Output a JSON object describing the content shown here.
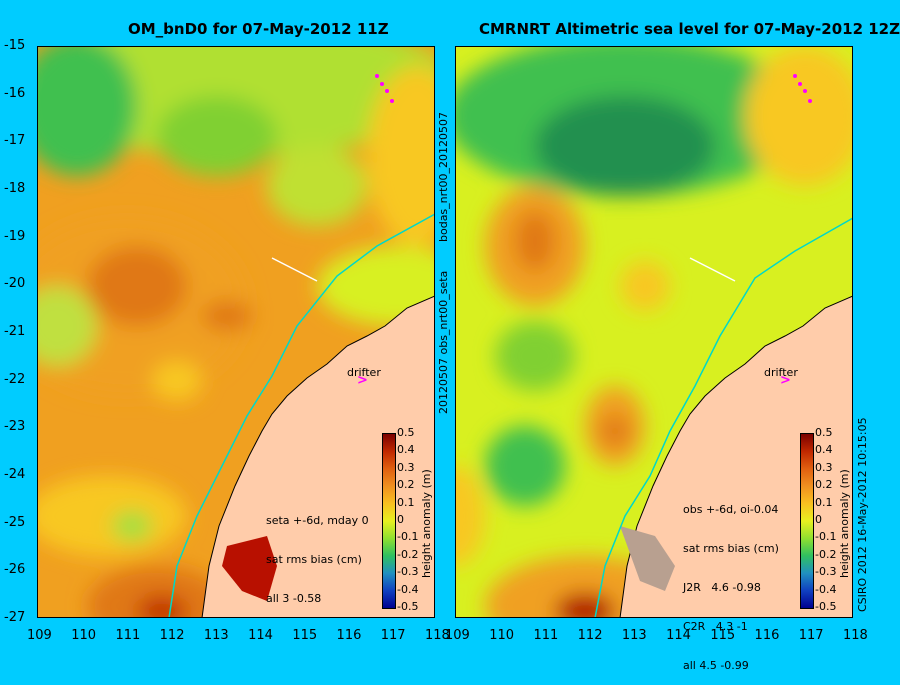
{
  "left_panel": {
    "title": "OM_bnD0 for 07-May-2012 11Z",
    "note_lines": [
      "seta +-6d, mday 0",
      "sat rms bias (cm)",
      "all 3 -0.58"
    ]
  },
  "right_panel": {
    "title": "CMRNRT Altimetric sea level  for 07-May-2012 12Z",
    "note_lines": [
      "obs +-6d, oi-0.04",
      "sat rms bias (cm)",
      "J2R   4.6 -0.98",
      "C2R   4.3 -1",
      "all 4.5 -0.99"
    ]
  },
  "y_ticks": [
    "-15",
    "-16",
    "-17",
    "-18",
    "-19",
    "-20",
    "-21",
    "-22",
    "-23",
    "-24",
    "-25",
    "-26",
    "-27"
  ],
  "x_ticks": [
    "109",
    "110",
    "111",
    "112",
    "113",
    "114",
    "115",
    "116",
    "117",
    "118"
  ],
  "x_ticks_right": [
    "109",
    "110",
    "111",
    "112",
    "113",
    "114",
    "115",
    "116",
    "117",
    "118"
  ],
  "colorbar": {
    "labels": [
      "0.5",
      "0.4",
      "0.3",
      "0.2",
      "0.1",
      "0",
      "-0.1",
      "-0.2",
      "-0.3",
      "-0.4",
      "-0.5"
    ],
    "title": "height anomaly (m)",
    "colors": [
      "#7a0000",
      "#c02800",
      "#e06010",
      "#f09020",
      "#f8c020",
      "#e8f020",
      "#90e030",
      "#30c060",
      "#2090c0",
      "#1040c0",
      "#000090"
    ]
  },
  "side_texts": {
    "middle_top": "bodas_nrt00_20120507",
    "middle_bottom": "20120507 obs_nrt00_seta",
    "right_edge": "CSIRO 2012  16-May-2012 10:15:05"
  },
  "drifter_label": "drifter"
}
